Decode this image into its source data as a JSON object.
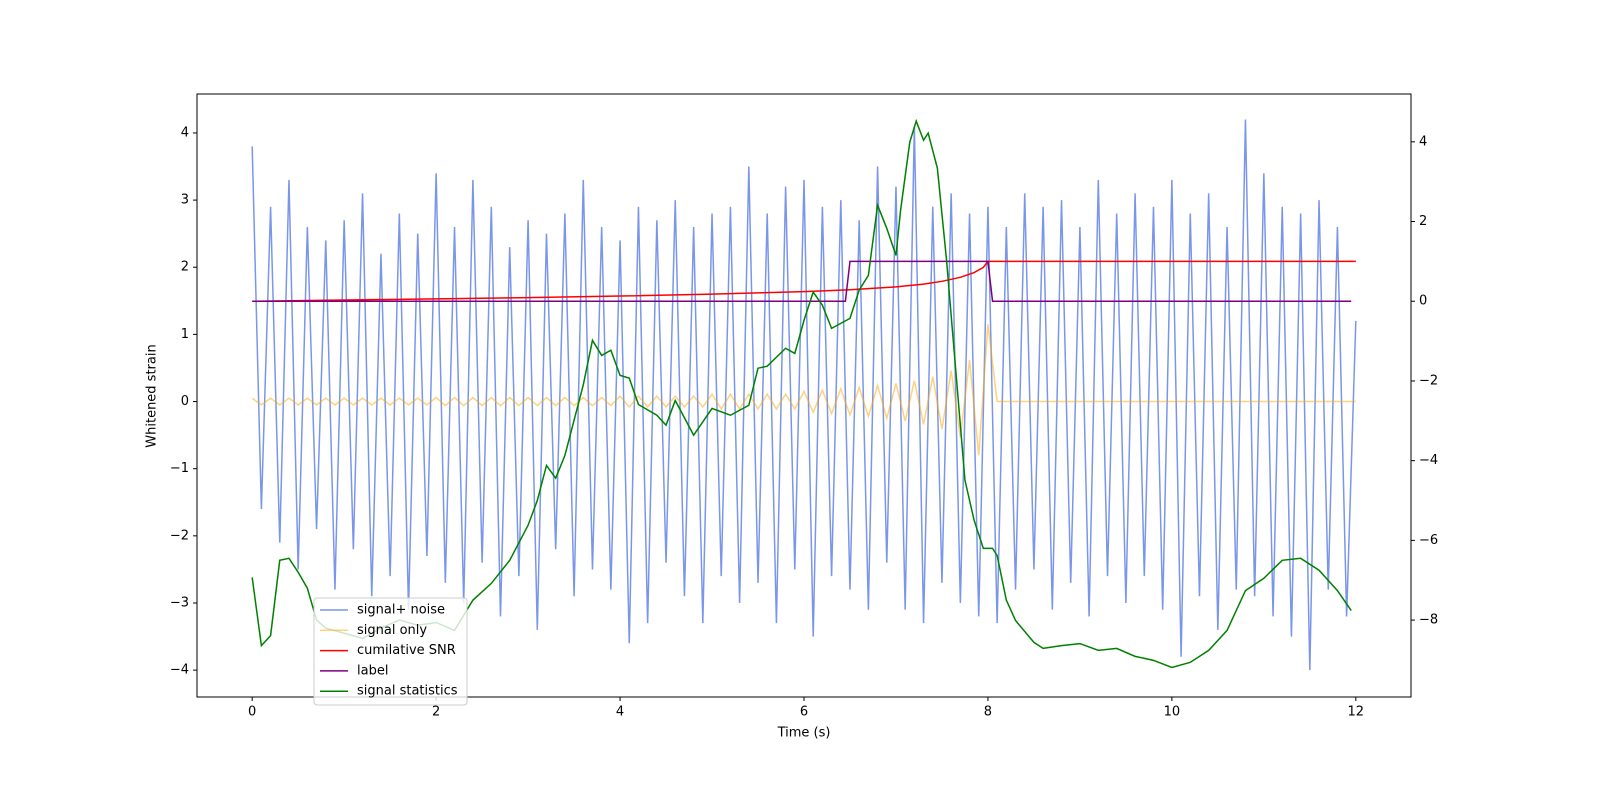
{
  "chart_data": {
    "type": "line",
    "xlabel": "Time (s)",
    "ylabel": "Whitened strain",
    "xlim": [
      -0.6,
      12.6
    ],
    "ylim": [
      -4.4,
      4.58
    ],
    "y2lim": [
      -9.93,
      5.2
    ],
    "xticks": [
      0,
      2,
      4,
      6,
      8,
      10,
      12
    ],
    "yticks": [
      {
        "value": -4,
        "label": "−4"
      },
      {
        "value": -3,
        "label": "−3"
      },
      {
        "value": -2,
        "label": "−2"
      },
      {
        "value": -1,
        "label": "−1"
      },
      0,
      1,
      2,
      3,
      4
    ],
    "y2ticks": [
      {
        "value": -8,
        "label": "−8"
      },
      {
        "value": -6,
        "label": "−6"
      },
      {
        "value": -4,
        "label": "−4"
      },
      {
        "value": -2,
        "label": "−2"
      },
      0,
      2,
      4
    ],
    "legend": "lower left",
    "series": [
      {
        "name": "signal+ noise",
        "color": "#4169e1",
        "x": [
          0,
          0.1,
          0.2,
          0.3,
          0.4,
          0.5,
          0.6,
          0.7,
          0.8,
          0.9,
          1,
          1.1,
          1.2,
          1.3,
          1.4,
          1.5,
          1.6,
          1.7,
          1.8,
          1.9,
          2,
          2.1,
          2.2,
          2.3,
          2.4,
          2.5,
          2.6,
          2.7,
          2.8,
          2.9,
          3,
          3.1,
          3.2,
          3.3,
          3.4,
          3.5,
          3.6,
          3.7,
          3.8,
          3.9,
          4,
          4.1,
          4.2,
          4.3,
          4.4,
          4.5,
          4.6,
          4.7,
          4.8,
          4.9,
          5,
          5.1,
          5.2,
          5.3,
          5.4,
          5.5,
          5.6,
          5.7,
          5.8,
          5.9,
          6,
          6.1,
          6.2,
          6.3,
          6.4,
          6.5,
          6.6,
          6.7,
          6.8,
          6.9,
          7,
          7.1,
          7.2,
          7.3,
          7.4,
          7.5,
          7.6,
          7.7,
          7.8,
          7.9,
          8,
          8.1,
          8.2,
          8.3,
          8.4,
          8.5,
          8.6,
          8.7,
          8.8,
          8.9,
          9,
          9.1,
          9.2,
          9.3,
          9.4,
          9.5,
          9.6,
          9.7,
          9.8,
          9.9,
          10,
          10.1,
          10.2,
          10.3,
          10.4,
          10.5,
          10.6,
          10.7,
          10.8,
          10.9,
          11,
          11.1,
          11.2,
          11.3,
          11.4,
          11.5,
          11.6,
          11.7,
          11.8,
          11.9,
          12
        ],
        "values": [
          3.8,
          -1.6,
          2.9,
          -2.1,
          3.3,
          -2.5,
          2.6,
          -1.9,
          2.4,
          -2.8,
          2.7,
          -2.2,
          3.1,
          -2.9,
          2.2,
          -2.6,
          2.8,
          -3.1,
          2.5,
          -2.3,
          3.4,
          -2.7,
          2.6,
          -3.0,
          3.3,
          -2.4,
          2.9,
          -3.2,
          2.3,
          -2.6,
          2.7,
          -3.4,
          2.5,
          -2.2,
          2.8,
          -2.9,
          3.3,
          -2.5,
          2.6,
          -2.8,
          2.4,
          -3.6,
          2.9,
          -3.3,
          2.7,
          -2.4,
          3.0,
          -2.9,
          2.6,
          -3.3,
          2.8,
          -2.6,
          2.9,
          -3.0,
          3.5,
          -2.7,
          2.8,
          -3.3,
          3.2,
          -2.5,
          3.3,
          -3.5,
          2.9,
          -2.6,
          3.0,
          -2.8,
          2.7,
          -3.1,
          3.5,
          -2.4,
          3.2,
          -3.1,
          4.1,
          -3.3,
          2.9,
          -2.7,
          3.1,
          -3.0,
          2.8,
          -3.2,
          2.9,
          -3.3,
          2.6,
          -2.8,
          3.1,
          -2.5,
          2.9,
          -3.1,
          3.0,
          -2.7,
          2.6,
          -3.2,
          3.3,
          -2.6,
          2.8,
          -3.0,
          3.1,
          -2.6,
          2.9,
          -3.1,
          3.3,
          -3.8,
          2.8,
          -2.9,
          3.1,
          -3.4,
          2.6,
          -2.8,
          4.2,
          -2.9,
          3.4,
          -3.2,
          2.9,
          -3.5,
          2.8,
          -4.0,
          3.0,
          -2.8,
          2.6,
          -3.2,
          1.2
        ]
      },
      {
        "name": "signal only",
        "color": "#ffa500",
        "x": [
          0,
          0.1,
          0.2,
          0.3,
          0.4,
          0.5,
          0.6,
          0.7,
          0.8,
          0.9,
          1,
          1.1,
          1.2,
          1.3,
          1.4,
          1.5,
          1.6,
          1.7,
          1.8,
          1.9,
          2,
          2.1,
          2.2,
          2.3,
          2.4,
          2.5,
          2.6,
          2.7,
          2.8,
          2.9,
          3,
          3.1,
          3.2,
          3.3,
          3.4,
          3.5,
          3.6,
          3.7,
          3.8,
          3.9,
          4,
          4.1,
          4.2,
          4.3,
          4.4,
          4.5,
          4.6,
          4.7,
          4.8,
          4.9,
          5,
          5.1,
          5.2,
          5.3,
          5.4,
          5.5,
          5.6,
          5.7,
          5.8,
          5.9,
          6,
          6.1,
          6.2,
          6.3,
          6.4,
          6.5,
          6.6,
          6.7,
          6.8,
          6.9,
          7,
          7.1,
          7.2,
          7.3,
          7.4,
          7.5,
          7.6,
          7.7,
          7.8,
          7.9,
          8,
          8.1,
          8.2,
          8.3,
          8.4,
          8.5,
          8.6,
          8.7,
          8.8,
          8.9,
          9,
          9.1,
          9.2,
          9.3,
          9.4,
          9.5,
          9.6,
          9.7,
          9.8,
          9.9,
          10,
          10.1,
          10.2,
          10.3,
          10.4,
          10.5,
          10.6,
          10.7,
          10.8,
          10.9,
          11,
          11.1,
          11.2,
          11.3,
          11.4,
          11.5,
          11.6,
          11.7,
          11.8,
          11.9,
          12
        ],
        "values": [
          0.05,
          -0.05,
          0.05,
          -0.05,
          0.05,
          -0.05,
          0.05,
          -0.05,
          0.05,
          -0.05,
          0.05,
          -0.05,
          0.05,
          -0.05,
          0.05,
          -0.05,
          0.05,
          -0.05,
          0.05,
          -0.05,
          0.06,
          -0.06,
          0.06,
          -0.06,
          0.06,
          -0.06,
          0.06,
          -0.06,
          0.06,
          -0.06,
          0.06,
          -0.06,
          0.06,
          -0.06,
          0.06,
          -0.06,
          0.06,
          -0.06,
          0.06,
          -0.06,
          0.08,
          -0.08,
          0.08,
          -0.08,
          0.08,
          -0.08,
          0.08,
          -0.08,
          0.08,
          -0.08,
          0.11,
          -0.11,
          0.11,
          -0.11,
          0.11,
          -0.11,
          0.11,
          -0.11,
          0.11,
          -0.11,
          0.15,
          -0.16,
          0.17,
          -0.18,
          0.19,
          -0.2,
          0.21,
          -0.22,
          0.24,
          -0.25,
          0.27,
          -0.29,
          0.31,
          -0.34,
          0.37,
          -0.41,
          0.46,
          -0.53,
          0.62,
          -0.8,
          1.15,
          0,
          0,
          0,
          0,
          0,
          0,
          0,
          0,
          0,
          0,
          0,
          0,
          0,
          0,
          0,
          0,
          0,
          0,
          0,
          0,
          0,
          0,
          0,
          0,
          0,
          0,
          0,
          0,
          0,
          0,
          0,
          0,
          0,
          0,
          0,
          0,
          0,
          0,
          0,
          0
        ]
      },
      {
        "name": "cumilative SNR",
        "color": "#ff0000",
        "axis": "y2",
        "x": [
          0,
          1,
          2,
          3,
          4,
          5,
          6,
          6.5,
          7,
          7.3,
          7.5,
          7.7,
          7.85,
          7.95,
          8,
          8.05,
          12
        ],
        "values": [
          0,
          0.03,
          0.06,
          0.09,
          0.13,
          0.18,
          0.24,
          0.29,
          0.36,
          0.43,
          0.5,
          0.6,
          0.72,
          0.85,
          1,
          1,
          1
        ]
      },
      {
        "name": "label",
        "color": "#800080",
        "axis": "y2",
        "x": [
          0,
          6.45,
          6.5,
          8.0,
          8.05,
          11.95
        ],
        "values": [
          0,
          0,
          1,
          1,
          0,
          0
        ]
      },
      {
        "name": "signal statistics",
        "color": "#008000",
        "axis": "y2",
        "x": [
          0,
          0.1,
          0.2,
          0.3,
          0.4,
          0.5,
          0.6,
          0.7,
          0.8,
          1.0,
          1.2,
          1.4,
          1.6,
          1.8,
          2.0,
          2.2,
          2.4,
          2.6,
          2.8,
          3.0,
          3.1,
          3.2,
          3.3,
          3.4,
          3.6,
          3.7,
          3.8,
          3.9,
          4.0,
          4.1,
          4.2,
          4.4,
          4.5,
          4.6,
          4.8,
          5.0,
          5.2,
          5.4,
          5.5,
          5.6,
          5.8,
          5.9,
          6.0,
          6.1,
          6.2,
          6.3,
          6.5,
          6.6,
          6.7,
          6.8,
          6.9,
          7.0,
          7.05,
          7.15,
          7.22,
          7.3,
          7.35,
          7.45,
          7.55,
          7.65,
          7.75,
          7.85,
          7.95,
          8.05,
          8.1,
          8.2,
          8.3,
          8.5,
          8.6,
          8.8,
          9.0,
          9.2,
          9.4,
          9.6,
          9.8,
          10.0,
          10.2,
          10.4,
          10.6,
          10.8,
          11.0,
          11.2,
          11.4,
          11.6,
          11.8,
          11.95
        ],
        "values": [
          -6.93,
          -8.64,
          -8.39,
          -6.5,
          -6.45,
          -6.8,
          -7.2,
          -8.0,
          -8.2,
          -8.33,
          -8.46,
          -8.2,
          -8.0,
          -8.13,
          -8.06,
          -8.26,
          -7.5,
          -7.08,
          -6.5,
          -5.62,
          -5.0,
          -4.12,
          -4.44,
          -3.87,
          -2.1,
          -0.98,
          -1.36,
          -1.23,
          -1.86,
          -1.93,
          -2.59,
          -2.86,
          -3.11,
          -2.49,
          -3.36,
          -2.69,
          -2.86,
          -2.61,
          -1.68,
          -1.63,
          -1.18,
          -1.31,
          -0.48,
          0.23,
          -0.1,
          -0.68,
          -0.43,
          0.28,
          0.65,
          2.41,
          1.83,
          1.15,
          2.28,
          3.99,
          4.52,
          4.04,
          4.22,
          3.34,
          1.03,
          -1.73,
          -4.49,
          -5.5,
          -6.2,
          -6.2,
          -6.38,
          -7.5,
          -8.01,
          -8.56,
          -8.71,
          -8.64,
          -8.59,
          -8.76,
          -8.71,
          -8.91,
          -9.01,
          -9.19,
          -9.06,
          -8.76,
          -8.26,
          -7.26,
          -6.95,
          -6.5,
          -6.45,
          -6.75,
          -7.26,
          -7.76
        ]
      }
    ]
  }
}
